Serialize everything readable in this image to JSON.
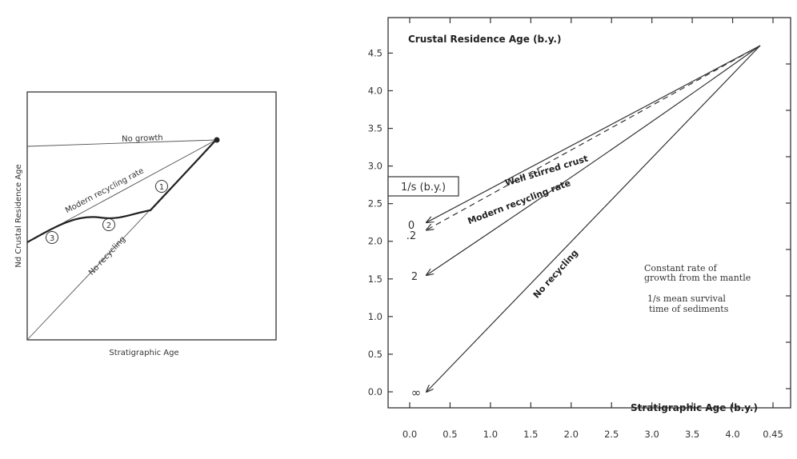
{
  "chart_data": [
    {
      "type": "line",
      "xlabel": "Stratigraphic Age",
      "ylabel": "Nd Crustal Residence Age",
      "series": [
        {
          "name": "No growth"
        },
        {
          "name": "Modern recycling rate"
        },
        {
          "name": "No recycling"
        }
      ],
      "markers": [
        "1",
        "2",
        "3"
      ]
    },
    {
      "type": "line",
      "title": "Crustal Residence Age (b.y.)",
      "xlabel": "Stratigraphic Age (b.y.)",
      "ylim": [
        0,
        4.6
      ],
      "xlim": [
        0,
        4.5
      ],
      "x_tick_labels": [
        "0.0",
        "0.5",
        "1.0",
        "1.5",
        "2.0",
        "2.5",
        "3.0",
        "3.5",
        "4.0",
        "0.45"
      ],
      "y_tick_labels": [
        "0.0",
        "0.5",
        "1.0",
        "1.5",
        "2.0",
        "2.5",
        "3.0",
        "3.5",
        "4.0",
        "4.5"
      ],
      "legend_title": "1/s (b.y.)",
      "series": [
        {
          "name": "Well stirred crust",
          "endpoint_label": "0",
          "x": [
            0.0,
            4.5
          ],
          "y": [
            2.25,
            4.6
          ]
        },
        {
          "name": "Modern recycling rate",
          "endpoint_label": ".2",
          "dashed": true,
          "x": [
            0.0,
            4.5
          ],
          "y": [
            2.15,
            4.6
          ]
        },
        {
          "endpoint_label": "2",
          "x": [
            0.0,
            2.5,
            4.5
          ],
          "y": [
            1.55,
            3.2,
            4.6
          ]
        },
        {
          "name": "No recycling",
          "endpoint_label": "∞",
          "x": [
            0.0,
            4.5
          ],
          "y": [
            0.0,
            4.6
          ]
        }
      ],
      "annotations": [
        "Constant rate of",
        "growth from the mantle",
        "1/s  mean survival",
        "time of sediments"
      ]
    }
  ]
}
